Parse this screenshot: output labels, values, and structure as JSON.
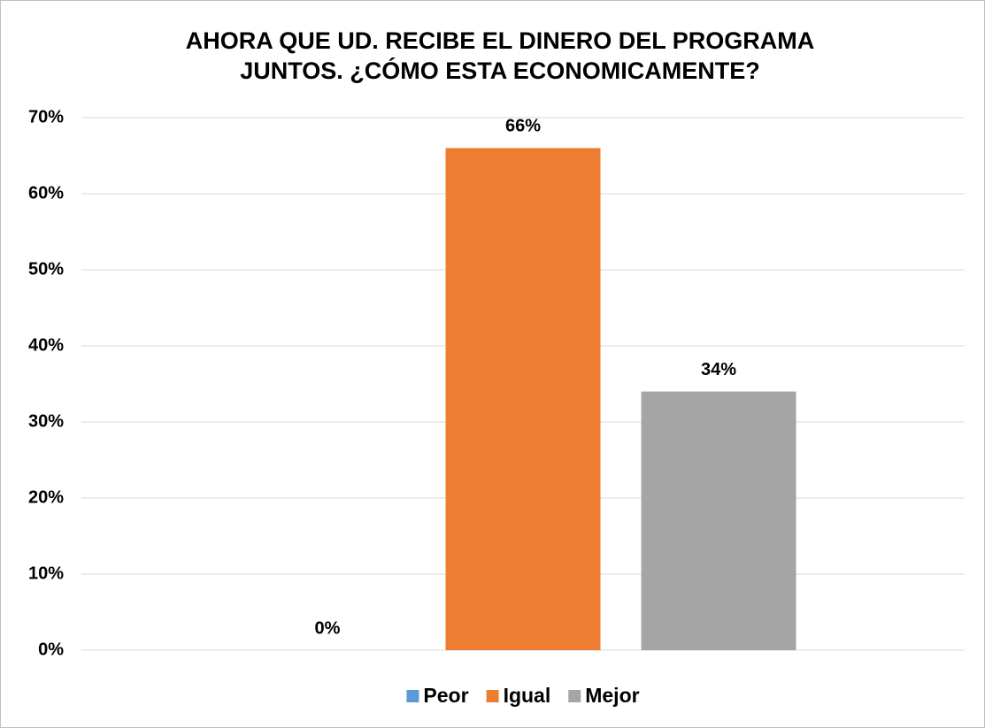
{
  "chart_data": {
    "type": "bar",
    "title": [
      "AHORA QUE UD. RECIBE EL DINERO DEL PROGRAMA",
      "JUNTOS. ¿CÓMO ESTA ECONOMICAMENTE?"
    ],
    "categories": [
      null
    ],
    "series": [
      {
        "name": "Peor",
        "color": "#5b9bd5",
        "values": [
          0
        ],
        "value_labels": [
          "0%"
        ]
      },
      {
        "name": "Igual",
        "color": "#ed7d31",
        "values": [
          66
        ],
        "value_labels": [
          "66%"
        ]
      },
      {
        "name": "Mejor",
        "color": "#a5a5a5",
        "values": [
          34
        ],
        "value_labels": [
          "34%"
        ]
      }
    ],
    "ylim": [
      0,
      70
    ],
    "yticks": [
      {
        "value": 0,
        "label": "0%"
      },
      {
        "value": 10,
        "label": "10%"
      },
      {
        "value": 20,
        "label": "20%"
      },
      {
        "value": 30,
        "label": "30%"
      },
      {
        "value": 40,
        "label": "40%"
      },
      {
        "value": 50,
        "label": "50%"
      },
      {
        "value": 60,
        "label": "60%"
      },
      {
        "value": 70,
        "label": "70%"
      }
    ],
    "grid": true,
    "legend": "bottom"
  }
}
